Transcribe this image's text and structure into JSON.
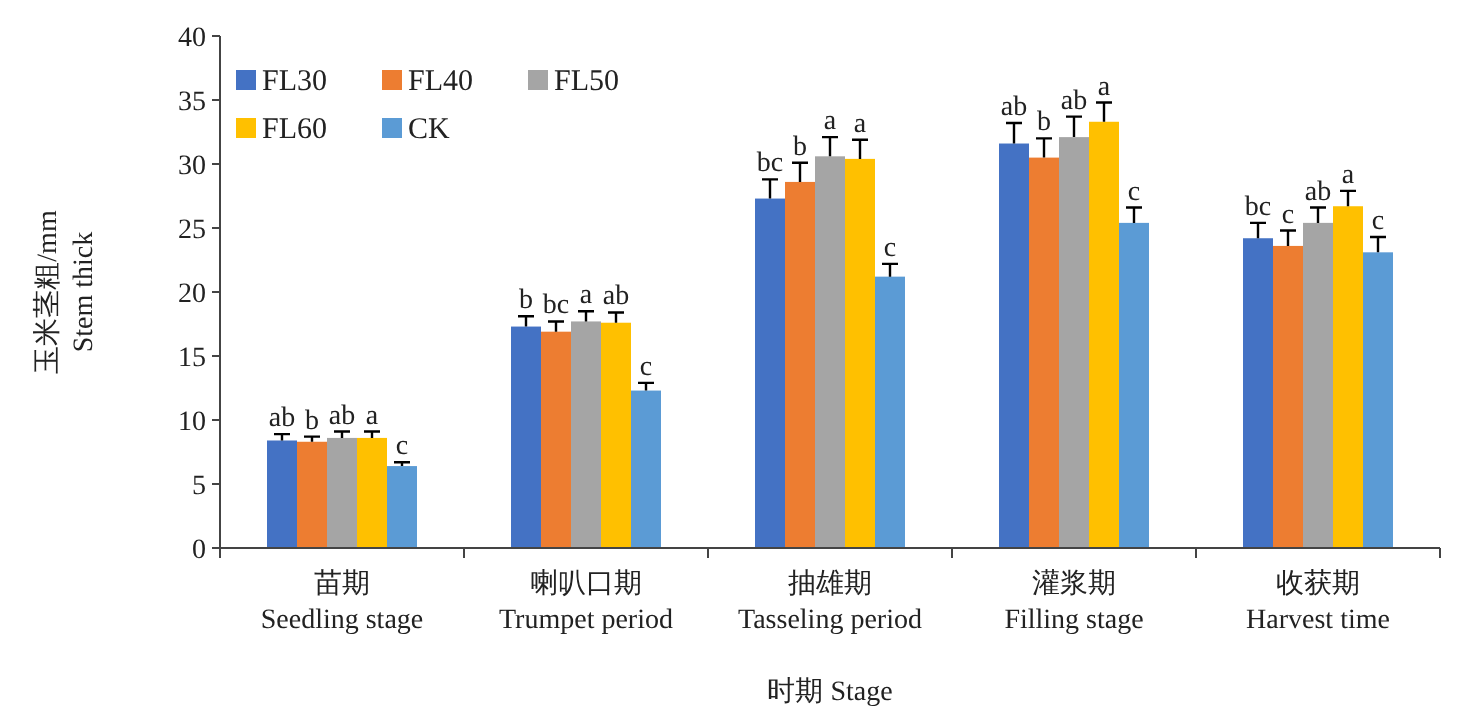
{
  "chart_data": {
    "type": "bar",
    "xlabel": "时期 Stage",
    "ylabel": "玉米茎粗/mm\nStem thick",
    "categories": [
      "苗期\nSeedling stage",
      "喇叭口期\nTrumpet period",
      "抽雄期\nTasseling period",
      "灌浆期\nFilling stage",
      "收获期\nHarvest time"
    ],
    "ylim": [
      0,
      40
    ],
    "yticks": [
      0,
      5,
      10,
      15,
      20,
      25,
      30,
      35,
      40
    ],
    "legend": "top left",
    "grid": false,
    "series": [
      {
        "name": "FL30",
        "color": "#4472c4",
        "values": [
          8.4,
          17.3,
          27.3,
          31.6,
          24.2
        ],
        "errors": [
          0.5,
          0.8,
          1.5,
          1.6,
          1.2
        ],
        "value_labels": [
          "ab",
          "b",
          "bc",
          "ab",
          "bc"
        ]
      },
      {
        "name": "FL40",
        "color": "#ed7d31",
        "values": [
          8.3,
          16.9,
          28.6,
          30.5,
          23.6
        ],
        "errors": [
          0.4,
          0.8,
          1.5,
          1.5,
          1.2
        ],
        "value_labels": [
          "b",
          "bc",
          "b",
          "b",
          "c"
        ]
      },
      {
        "name": "FL50",
        "color": "#a5a5a5",
        "values": [
          8.6,
          17.7,
          30.6,
          32.1,
          25.4
        ],
        "errors": [
          0.5,
          0.8,
          1.5,
          1.6,
          1.2
        ],
        "value_labels": [
          "ab",
          "a",
          "a",
          "ab",
          "ab"
        ]
      },
      {
        "name": "FL60",
        "color": "#ffc000",
        "values": [
          8.6,
          17.6,
          30.4,
          33.3,
          26.7
        ],
        "errors": [
          0.5,
          0.8,
          1.5,
          1.5,
          1.2
        ],
        "value_labels": [
          "a",
          "ab",
          "a",
          "a",
          "a"
        ]
      },
      {
        "name": "CK",
        "color": "#5b9bd5",
        "values": [
          6.4,
          12.3,
          21.2,
          25.4,
          23.1
        ],
        "errors": [
          0.3,
          0.6,
          1.0,
          1.2,
          1.2
        ],
        "value_labels": [
          "c",
          "c",
          "c",
          "c",
          "c"
        ]
      }
    ]
  }
}
